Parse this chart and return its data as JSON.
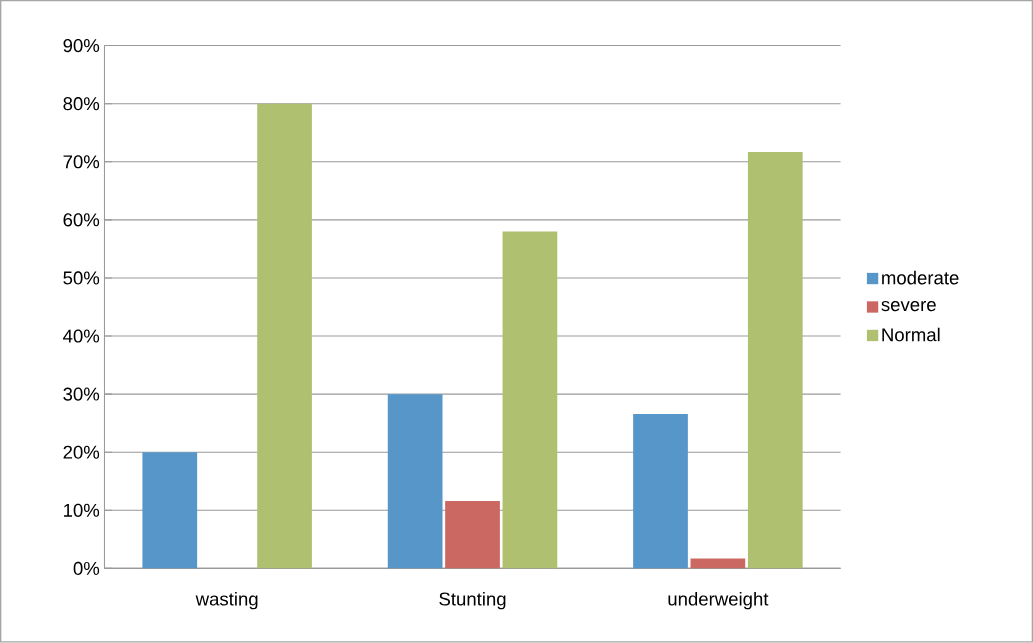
{
  "chart_data": {
    "type": "bar",
    "categories": [
      "wasting",
      "Stunting",
      "underweight"
    ],
    "series": [
      {
        "name": "moderate",
        "color": "#5796c8",
        "values": [
          20,
          30,
          26.6
        ]
      },
      {
        "name": "severe",
        "color": "#cb6862",
        "values": [
          0,
          11.6,
          1.7
        ]
      },
      {
        "name": "Normal",
        "color": "#afc070",
        "values": [
          80,
          58,
          71.7
        ]
      }
    ],
    "ylim": [
      0,
      90
    ],
    "yticks": [
      {
        "value": 0,
        "label": "0%"
      },
      {
        "value": 10,
        "label": "10%"
      },
      {
        "value": 20,
        "label": "20%"
      },
      {
        "value": 30,
        "label": "30%"
      },
      {
        "value": 40,
        "label": "40%"
      },
      {
        "value": 50,
        "label": "50%"
      },
      {
        "value": 60,
        "label": "60%"
      },
      {
        "value": 70,
        "label": "70%"
      },
      {
        "value": 80,
        "label": "80%"
      },
      {
        "value": 90,
        "label": "90%"
      }
    ],
    "grid": "y",
    "legend": "right"
  }
}
